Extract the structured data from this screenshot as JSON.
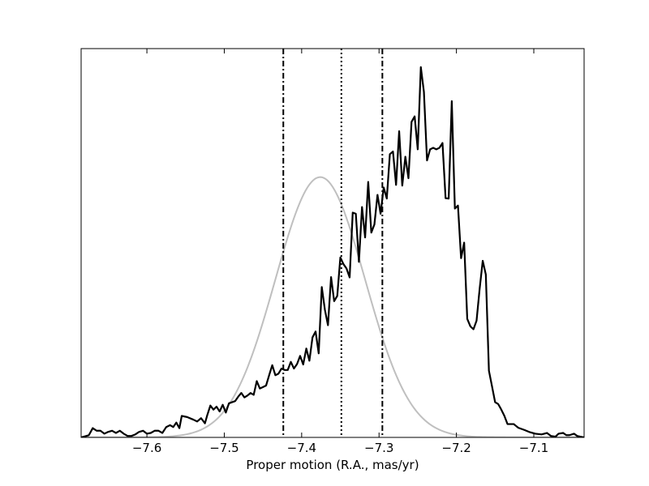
{
  "chart_data": {
    "type": "line",
    "xlabel": "Proper motion (R.A., mas/yr)",
    "ylabel": "",
    "title": "",
    "xlim": [
      -7.685,
      -7.035
    ],
    "ylim": [
      0,
      1.05
    ],
    "x_ticks": [
      -7.6,
      -7.5,
      -7.4,
      -7.3,
      -7.2,
      -7.1
    ],
    "x_tick_labels": [
      "−7.6",
      "−7.5",
      "−7.4",
      "−7.3",
      "−7.2",
      "−7.1"
    ],
    "y_ticks_shown": false,
    "grid": false,
    "legend": "none",
    "colors": {
      "histogram": "#000000",
      "gaussian": "#bfbfbf",
      "reference_lines": "#000000"
    },
    "series": [
      {
        "role": "histogram",
        "style": "solid",
        "points": [
          [
            -7.685,
            0.0
          ],
          [
            -7.675,
            0.006
          ],
          [
            -7.67,
            0.025
          ],
          [
            -7.665,
            0.018
          ],
          [
            -7.66,
            0.018
          ],
          [
            -7.655,
            0.01
          ],
          [
            -7.65,
            0.015
          ],
          [
            -7.645,
            0.018
          ],
          [
            -7.64,
            0.012
          ],
          [
            -7.635,
            0.018
          ],
          [
            -7.63,
            0.01
          ],
          [
            -7.625,
            0.004
          ],
          [
            -7.62,
            0.004
          ],
          [
            -7.615,
            0.008
          ],
          [
            -7.61,
            0.015
          ],
          [
            -7.605,
            0.018
          ],
          [
            -7.6,
            0.01
          ],
          [
            -7.595,
            0.012
          ],
          [
            -7.59,
            0.018
          ],
          [
            -7.585,
            0.018
          ],
          [
            -7.58,
            0.012
          ],
          [
            -7.575,
            0.028
          ],
          [
            -7.57,
            0.033
          ],
          [
            -7.566,
            0.028
          ],
          [
            -7.562,
            0.04
          ],
          [
            -7.558,
            0.025
          ],
          [
            -7.555,
            0.058
          ],
          [
            -7.548,
            0.055
          ],
          [
            -7.54,
            0.048
          ],
          [
            -7.535,
            0.043
          ],
          [
            -7.53,
            0.052
          ],
          [
            -7.525,
            0.038
          ],
          [
            -7.522,
            0.06
          ],
          [
            -7.518,
            0.086
          ],
          [
            -7.514,
            0.075
          ],
          [
            -7.51,
            0.083
          ],
          [
            -7.506,
            0.07
          ],
          [
            -7.502,
            0.088
          ],
          [
            -7.498,
            0.067
          ],
          [
            -7.494,
            0.092
          ],
          [
            -7.49,
            0.095
          ],
          [
            -7.486,
            0.098
          ],
          [
            -7.482,
            0.11
          ],
          [
            -7.478,
            0.12
          ],
          [
            -7.474,
            0.108
          ],
          [
            -7.47,
            0.113
          ],
          [
            -7.466,
            0.12
          ],
          [
            -7.462,
            0.115
          ],
          [
            -7.458,
            0.152
          ],
          [
            -7.454,
            0.132
          ],
          [
            -7.45,
            0.136
          ],
          [
            -7.446,
            0.14
          ],
          [
            -7.442,
            0.168
          ],
          [
            -7.438,
            0.195
          ],
          [
            -7.434,
            0.168
          ],
          [
            -7.43,
            0.172
          ],
          [
            -7.426,
            0.186
          ],
          [
            -7.422,
            0.182
          ],
          [
            -7.418,
            0.182
          ],
          [
            -7.414,
            0.204
          ],
          [
            -7.41,
            0.186
          ],
          [
            -7.406,
            0.198
          ],
          [
            -7.402,
            0.22
          ],
          [
            -7.398,
            0.197
          ],
          [
            -7.394,
            0.24
          ],
          [
            -7.39,
            0.207
          ],
          [
            -7.386,
            0.27
          ],
          [
            -7.382,
            0.286
          ],
          [
            -7.378,
            0.227
          ],
          [
            -7.374,
            0.406
          ],
          [
            -7.37,
            0.345
          ],
          [
            -7.366,
            0.303
          ],
          [
            -7.362,
            0.433
          ],
          [
            -7.358,
            0.368
          ],
          [
            -7.354,
            0.382
          ],
          [
            -7.35,
            0.486
          ],
          [
            -7.346,
            0.468
          ],
          [
            -7.342,
            0.456
          ],
          [
            -7.338,
            0.432
          ],
          [
            -7.334,
            0.607
          ],
          [
            -7.33,
            0.604
          ],
          [
            -7.326,
            0.474
          ],
          [
            -7.322,
            0.622
          ],
          [
            -7.318,
            0.54
          ],
          [
            -7.314,
            0.69
          ],
          [
            -7.31,
            0.553
          ],
          [
            -7.306,
            0.575
          ],
          [
            -7.302,
            0.655
          ],
          [
            -7.298,
            0.604
          ],
          [
            -7.294,
            0.675
          ],
          [
            -7.29,
            0.645
          ],
          [
            -7.286,
            0.765
          ],
          [
            -7.282,
            0.772
          ],
          [
            -7.278,
            0.682
          ],
          [
            -7.274,
            0.827
          ],
          [
            -7.27,
            0.68
          ],
          [
            -7.266,
            0.758
          ],
          [
            -7.262,
            0.7
          ],
          [
            -7.258,
            0.852
          ],
          [
            -7.254,
            0.867
          ],
          [
            -7.25,
            0.778
          ],
          [
            -7.246,
            1.0
          ],
          [
            -7.242,
            0.933
          ],
          [
            -7.238,
            0.748
          ],
          [
            -7.234,
            0.778
          ],
          [
            -7.23,
            0.782
          ],
          [
            -7.226,
            0.778
          ],
          [
            -7.222,
            0.782
          ],
          [
            -7.218,
            0.795
          ],
          [
            -7.214,
            0.646
          ],
          [
            -7.21,
            0.645
          ],
          [
            -7.206,
            0.908
          ],
          [
            -7.202,
            0.618
          ],
          [
            -7.198,
            0.626
          ],
          [
            -7.194,
            0.484
          ],
          [
            -7.19,
            0.526
          ],
          [
            -7.186,
            0.32
          ],
          [
            -7.182,
            0.3
          ],
          [
            -7.178,
            0.292
          ],
          [
            -7.174,
            0.315
          ],
          [
            -7.17,
            0.401
          ],
          [
            -7.166,
            0.477
          ],
          [
            -7.162,
            0.44
          ],
          [
            -7.158,
            0.18
          ],
          [
            -7.154,
            0.138
          ],
          [
            -7.15,
            0.095
          ],
          [
            -7.146,
            0.09
          ],
          [
            -7.142,
            0.075
          ],
          [
            -7.138,
            0.058
          ],
          [
            -7.134,
            0.036
          ],
          [
            -7.126,
            0.036
          ],
          [
            -7.12,
            0.026
          ],
          [
            -7.112,
            0.02
          ],
          [
            -7.105,
            0.014
          ],
          [
            -7.098,
            0.01
          ],
          [
            -7.09,
            0.008
          ],
          [
            -7.083,
            0.012
          ],
          [
            -7.078,
            0.004
          ],
          [
            -7.072,
            0.002
          ],
          [
            -7.068,
            0.01
          ],
          [
            -7.062,
            0.012
          ],
          [
            -7.058,
            0.006
          ],
          [
            -7.054,
            0.006
          ],
          [
            -7.048,
            0.01
          ],
          [
            -7.044,
            0.004
          ],
          [
            -7.04,
            0.002
          ],
          [
            -7.035,
            0.0
          ]
        ]
      },
      {
        "role": "gaussian_fit",
        "style": "solid",
        "mean": -7.376,
        "sigma": 0.058,
        "peak": 0.703
      }
    ],
    "reference_lines": [
      {
        "x": -7.4237,
        "style": "dash-dot"
      },
      {
        "x": -7.3487,
        "style": "dotted"
      },
      {
        "x": -7.2957,
        "style": "dash-dot"
      }
    ]
  }
}
